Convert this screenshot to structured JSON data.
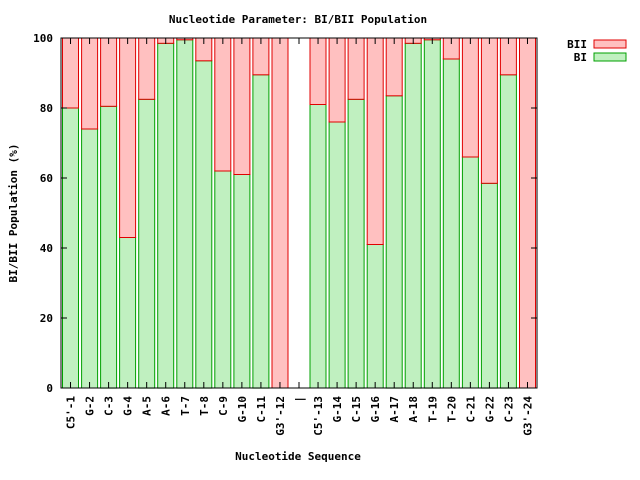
{
  "chart_data": {
    "type": "bar",
    "stacked": true,
    "title": "Nucleotide Parameter: BI/BII Population",
    "xlabel": "Nucleotide Sequence",
    "ylabel": "BI/BII Population (%)",
    "ylim": [
      0,
      100
    ],
    "yticks": [
      0,
      20,
      40,
      60,
      80,
      100
    ],
    "grid": false,
    "legend_position": "top-right outside",
    "categories": [
      "C5'-1",
      "G-2",
      "C-3",
      "G-4",
      "A-5",
      "A-6",
      "T-7",
      "T-8",
      "C-9",
      "G-10",
      "C-11",
      "G3'-12",
      "|",
      "C5'-13",
      "G-14",
      "C-15",
      "G-16",
      "A-17",
      "A-18",
      "T-19",
      "T-20",
      "C-21",
      "G-22",
      "C-23",
      "G3'-24"
    ],
    "series": [
      {
        "name": "BI",
        "color": "#c0f0c0",
        "edge": "#00a000",
        "values": [
          80,
          74,
          80.5,
          43,
          82.5,
          98.5,
          99.5,
          93.5,
          62,
          61,
          89.5,
          0,
          null,
          81,
          76,
          82.5,
          41,
          83.5,
          98.5,
          99.5,
          94,
          66,
          58.5,
          89.5,
          0
        ]
      },
      {
        "name": "BII",
        "color": "#ffc0c0",
        "edge": "#e00000",
        "values": [
          20,
          26,
          19.5,
          57,
          17.5,
          1.5,
          0.5,
          6.5,
          38,
          39,
          10.5,
          100,
          null,
          19,
          24,
          17.5,
          59,
          16.5,
          1.5,
          0.5,
          6,
          34,
          41.5,
          10.5,
          100
        ]
      }
    ]
  }
}
